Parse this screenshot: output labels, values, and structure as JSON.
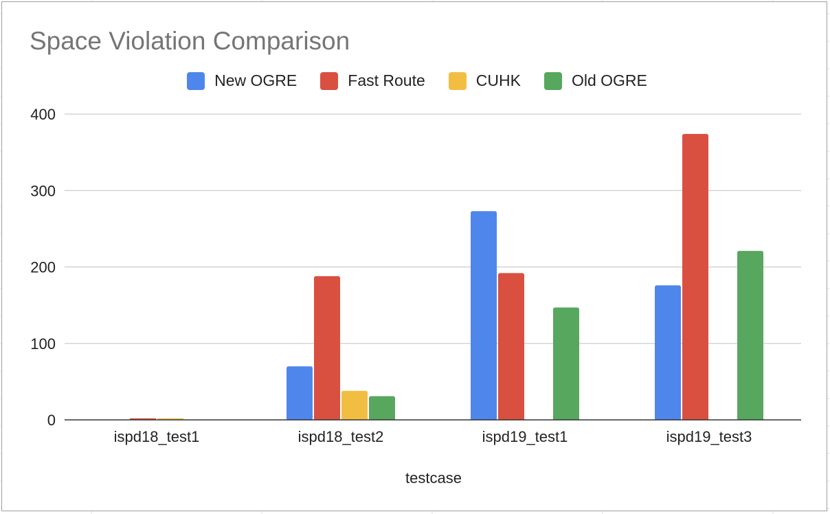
{
  "chart_data": {
    "type": "bar",
    "title": "Space Violation Comparison",
    "xlabel": "testcase",
    "ylabel": "",
    "categories": [
      "ispd18_test1",
      "ispd18_test2",
      "ispd19_test1",
      "ispd19_test3"
    ],
    "series": [
      {
        "name": "New OGRE",
        "color": "#4f86ec",
        "values": [
          0,
          70,
          273,
          176
        ]
      },
      {
        "name": "Fast Route",
        "color": "#d95040",
        "values": [
          2,
          188,
          192,
          374
        ]
      },
      {
        "name": "CUHK",
        "color": "#f2be42",
        "values": [
          2,
          38,
          0,
          0
        ]
      },
      {
        "name": "Old OGRE",
        "color": "#57a75e",
        "values": [
          0,
          31,
          147,
          221
        ]
      }
    ],
    "ylim": [
      0,
      400
    ],
    "yticks": [
      0,
      100,
      200,
      300,
      400
    ],
    "grid": true,
    "legend_position": "top"
  }
}
